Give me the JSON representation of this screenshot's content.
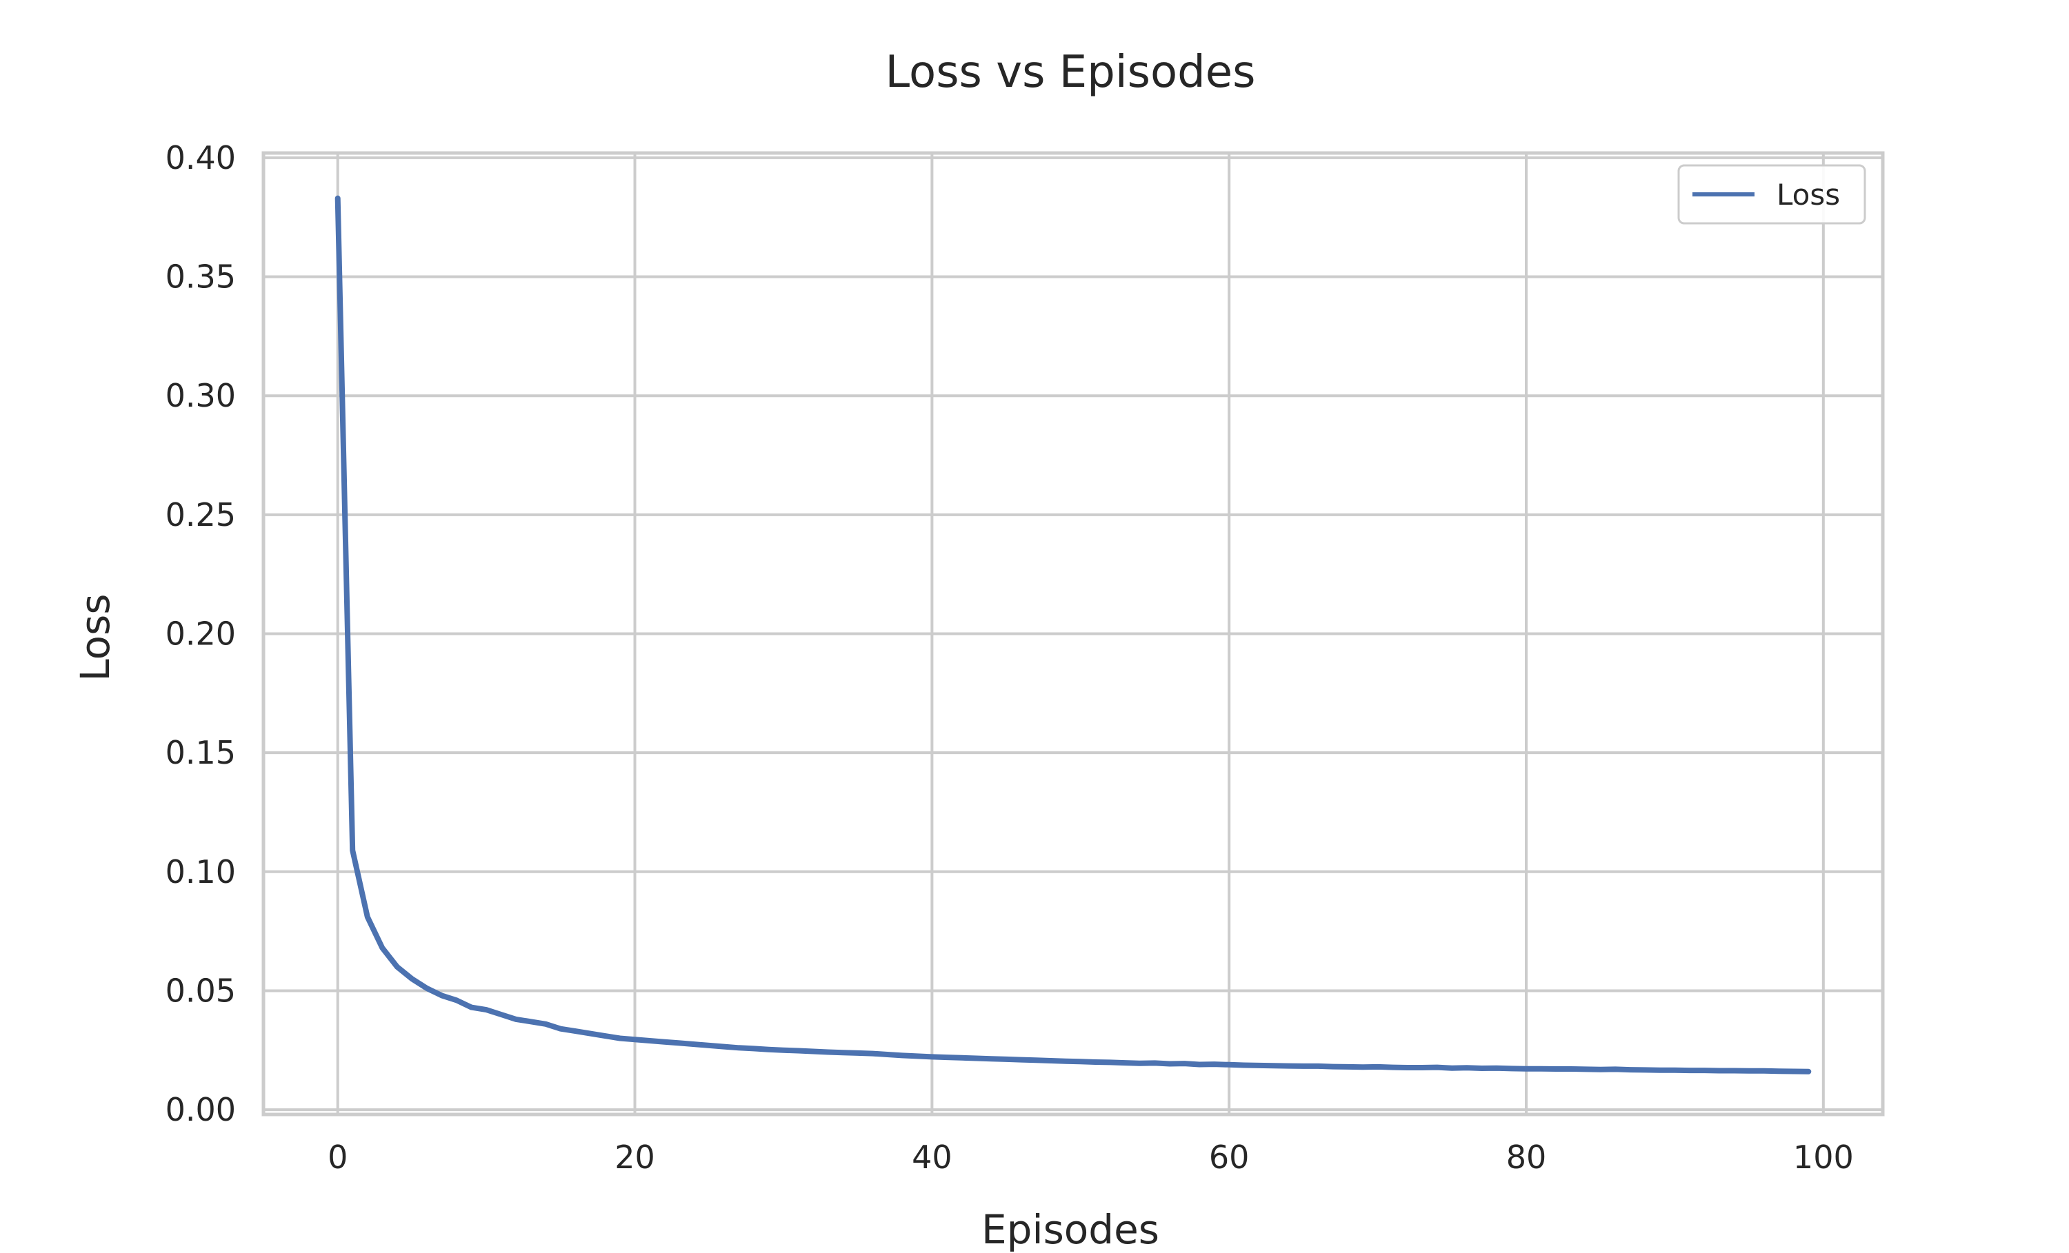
{
  "chart_data": {
    "type": "line",
    "title": "Loss vs Episodes",
    "xlabel": "Episodes",
    "ylabel": "Loss",
    "xlim": [
      -5,
      104
    ],
    "ylim": [
      -0.002,
      0.402
    ],
    "x_ticks": [
      0,
      20,
      40,
      60,
      80,
      100
    ],
    "y_ticks": [
      0.0,
      0.05,
      0.1,
      0.15,
      0.2,
      0.25,
      0.3,
      0.35,
      0.4
    ],
    "x_tick_labels": [
      "0",
      "20",
      "40",
      "60",
      "80",
      "100"
    ],
    "y_tick_labels": [
      "0.00",
      "0.05",
      "0.10",
      "0.15",
      "0.20",
      "0.25",
      "0.30",
      "0.35",
      "0.40"
    ],
    "grid": true,
    "legend": {
      "position": "top-right",
      "entries": [
        "Loss"
      ]
    },
    "series": [
      {
        "name": "Loss",
        "color": "#4c72b0",
        "x": [
          0,
          1,
          2,
          3,
          4,
          5,
          6,
          7,
          8,
          9,
          10,
          11,
          12,
          13,
          14,
          15,
          16,
          17,
          18,
          19,
          20,
          21,
          22,
          23,
          24,
          25,
          26,
          27,
          28,
          29,
          30,
          31,
          32,
          33,
          34,
          35,
          36,
          37,
          38,
          39,
          40,
          41,
          42,
          43,
          44,
          45,
          46,
          47,
          48,
          49,
          50,
          51,
          52,
          53,
          54,
          55,
          56,
          57,
          58,
          59,
          60,
          61,
          62,
          63,
          64,
          65,
          66,
          67,
          68,
          69,
          70,
          71,
          72,
          73,
          74,
          75,
          76,
          77,
          78,
          79,
          80,
          81,
          82,
          83,
          84,
          85,
          86,
          87,
          88,
          89,
          90,
          91,
          92,
          93,
          94,
          95,
          96,
          97,
          98,
          99
        ],
        "values": [
          0.383,
          0.109,
          0.081,
          0.068,
          0.06,
          0.055,
          0.051,
          0.048,
          0.046,
          0.043,
          0.042,
          0.04,
          0.038,
          0.037,
          0.036,
          0.034,
          0.033,
          0.032,
          0.031,
          0.03,
          0.0295,
          0.029,
          0.0285,
          0.028,
          0.0275,
          0.027,
          0.0265,
          0.026,
          0.0257,
          0.0253,
          0.025,
          0.0248,
          0.0245,
          0.0242,
          0.024,
          0.0238,
          0.0236,
          0.0232,
          0.0228,
          0.0225,
          0.0222,
          0.022,
          0.0218,
          0.0216,
          0.0214,
          0.0212,
          0.021,
          0.0208,
          0.0206,
          0.0204,
          0.0202,
          0.02,
          0.0199,
          0.0197,
          0.0195,
          0.0196,
          0.0193,
          0.0194,
          0.019,
          0.0191,
          0.0189,
          0.0187,
          0.0186,
          0.0185,
          0.0184,
          0.0183,
          0.0183,
          0.0181,
          0.018,
          0.0179,
          0.018,
          0.0178,
          0.0177,
          0.0177,
          0.0178,
          0.0175,
          0.0176,
          0.0174,
          0.0175,
          0.0173,
          0.0172,
          0.0172,
          0.0171,
          0.0171,
          0.017,
          0.0169,
          0.017,
          0.0168,
          0.0167,
          0.0166,
          0.0166,
          0.0165,
          0.0165,
          0.0164,
          0.0164,
          0.0163,
          0.0163,
          0.0162,
          0.0161,
          0.016
        ]
      }
    ]
  }
}
